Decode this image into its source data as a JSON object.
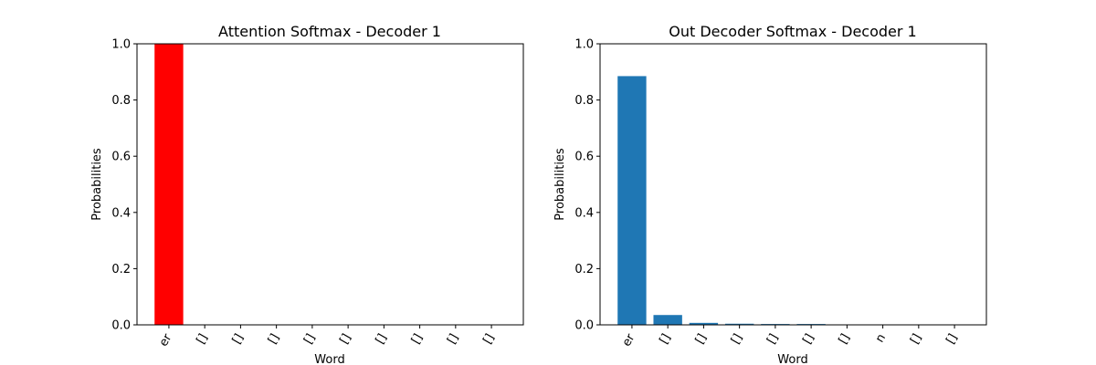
{
  "chart_data": [
    {
      "type": "bar",
      "title": "Attention Softmax - Decoder 1",
      "xlabel": "Word",
      "ylabel": "Probabilities",
      "ylim": [
        0,
        1.0
      ],
      "yticks": [
        "0.0",
        "0.2",
        "0.4",
        "0.6",
        "0.8",
        "1.0"
      ],
      "categories": [
        "er",
        "[]",
        "[]",
        "[]",
        "[]",
        "[]",
        "[]",
        "[]",
        "[]",
        "[]"
      ],
      "values": [
        1.0,
        0,
        0,
        0,
        0,
        0,
        0,
        0,
        0,
        0
      ],
      "color": "#ff0000",
      "grid": false
    },
    {
      "type": "bar",
      "title": "Out Decoder Softmax - Decoder 1",
      "xlabel": "Word",
      "ylabel": "Probabilities",
      "ylim": [
        0,
        1.0
      ],
      "yticks": [
        "0.0",
        "0.2",
        "0.4",
        "0.6",
        "0.8",
        "1.0"
      ],
      "categories": [
        "er",
        "[]",
        "[]",
        "[]",
        "[]",
        "[]",
        "[]",
        "n",
        "[]",
        "[]"
      ],
      "values": [
        0.885,
        0.035,
        0.007,
        0.004,
        0.003,
        0.003,
        0.001,
        0.001,
        0.0005,
        0.0005
      ],
      "color": "#1f77b4",
      "grid": false
    }
  ]
}
